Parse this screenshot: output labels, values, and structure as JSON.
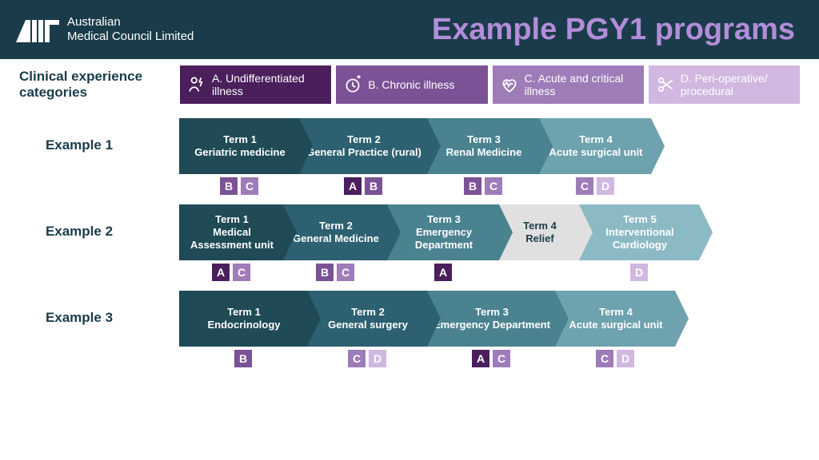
{
  "header": {
    "org_line1": "Australian",
    "org_line2": "Medical Council Limited",
    "title": "Example PGY1 programs",
    "bg": "#1a3c4a",
    "title_color": "#b38dd9"
  },
  "categories_label": "Clinical experience categories",
  "categories": [
    {
      "key": "A",
      "label": "A. Undifferentiated illness",
      "color": "#4a1f5c",
      "icon": "person-bolt"
    },
    {
      "key": "B",
      "label": "B. Chronic illness",
      "color": "#7b5295",
      "icon": "clock-plus"
    },
    {
      "key": "C",
      "label": "C. Acute and critical illness",
      "color": "#9d7cb8",
      "icon": "heart-pulse"
    },
    {
      "key": "D",
      "label": "D. Peri-operative/ procedural",
      "color": "#d0b8e0",
      "icon": "scissors"
    }
  ],
  "tag_colors": {
    "A": "#4a1f5c",
    "B": "#7b5295",
    "C": "#9d7cb8",
    "D": "#d0b8e0"
  },
  "term_palette": [
    "#1f4a56",
    "#2d6070",
    "#4a8290",
    "#6da2ae",
    "#8cbac4"
  ],
  "relief_color": "#e0e0e0",
  "examples": [
    {
      "label": "Example 1",
      "terms": [
        {
          "title": "Term 1",
          "sub": "Geriatric medicine",
          "w": 150,
          "tags": [
            "B",
            "C"
          ]
        },
        {
          "title": "Term 2",
          "sub": "General Practice (rural)",
          "w": 160,
          "tags": [
            "A",
            "B"
          ]
        },
        {
          "title": "Term 3",
          "sub": "Renal Medicine",
          "w": 140,
          "tags": [
            "B",
            "C"
          ]
        },
        {
          "title": "Term 4",
          "sub": "Acute surgical unit",
          "w": 140,
          "tags": [
            "C",
            "D"
          ]
        }
      ]
    },
    {
      "label": "Example 2",
      "terms": [
        {
          "title": "Term 1",
          "sub": "Medical Assessment unit",
          "w": 130,
          "tags": [
            "A",
            "C"
          ]
        },
        {
          "title": "Term 2",
          "sub": "General Medicine",
          "w": 130,
          "tags": [
            "B",
            "C"
          ]
        },
        {
          "title": "Term 3",
          "sub": "Emergency Department",
          "w": 140,
          "tags": [
            "A"
          ]
        },
        {
          "title": "Term 4",
          "sub": "Relief",
          "w": 100,
          "tags": [],
          "relief": true
        },
        {
          "title": "Term 5",
          "sub": "Interventional Cardiology",
          "w": 150,
          "tags": [
            "D"
          ]
        }
      ]
    },
    {
      "label": "Example 3",
      "terms": [
        {
          "title": "Term 1",
          "sub": "Endocrinology",
          "w": 160,
          "tags": [
            "B"
          ]
        },
        {
          "title": "Term 2",
          "sub": "General surgery",
          "w": 150,
          "tags": [
            "C",
            "D"
          ]
        },
        {
          "title": "Term 3",
          "sub": "Emergency Department",
          "w": 160,
          "tags": [
            "A",
            "C"
          ]
        },
        {
          "title": "Term 4",
          "sub": "Acute surgical unit",
          "w": 150,
          "tags": [
            "C",
            "D"
          ]
        }
      ]
    }
  ]
}
